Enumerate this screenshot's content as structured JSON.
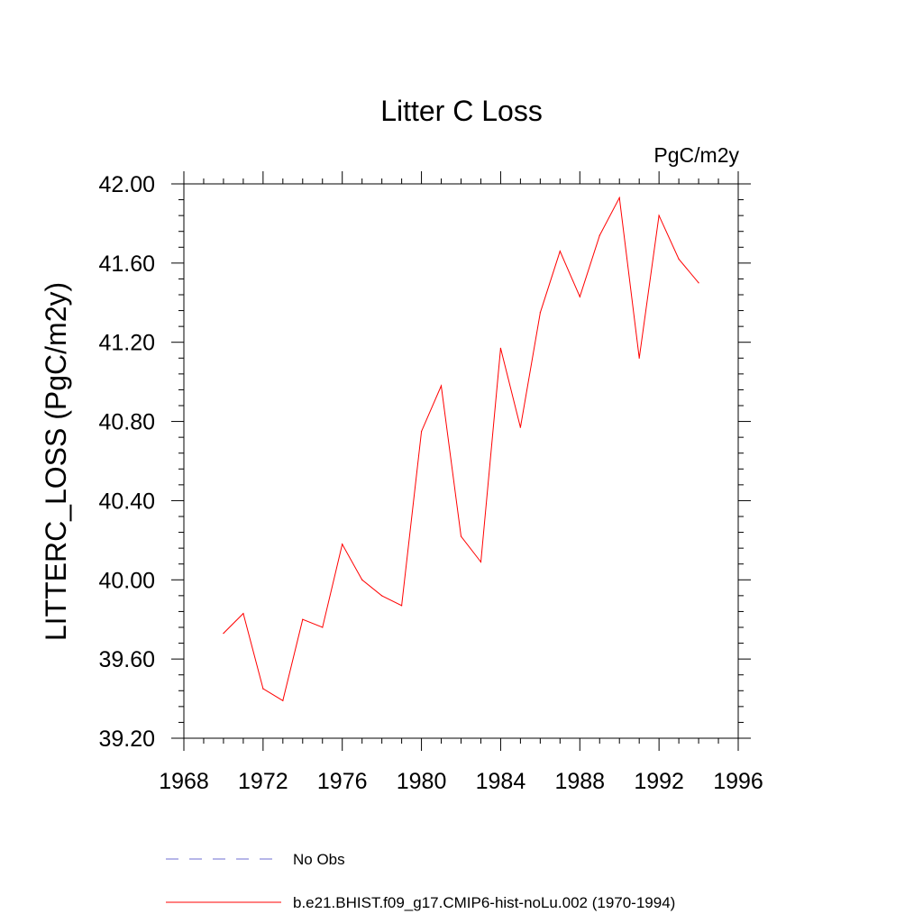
{
  "chart_data": {
    "type": "line",
    "title": "Litter C Loss",
    "units_label": "PgC/m2y",
    "ylabel": "LITTERC_LOSS  (PgC/m2y)",
    "xlabel": "",
    "xlim": [
      1968,
      1996
    ],
    "ylim": [
      39.2,
      42.0
    ],
    "x_ticks": [
      "1968",
      "1972",
      "1976",
      "1980",
      "1984",
      "1988",
      "1992",
      "1996"
    ],
    "y_ticks": [
      "39.20",
      "39.60",
      "40.00",
      "40.40",
      "40.80",
      "41.20",
      "41.60",
      "42.00"
    ],
    "grid": false,
    "series": [
      {
        "name": "b.e21.BHIST.f09_g17.CMIP6-hist-noLu.002 (1970-1994)",
        "color": "#ff0000",
        "x": [
          1970,
          1971,
          1972,
          1973,
          1974,
          1975,
          1976,
          1977,
          1978,
          1979,
          1980,
          1981,
          1982,
          1983,
          1984,
          1985,
          1986,
          1987,
          1988,
          1989,
          1990,
          1991,
          1992,
          1993,
          1994
        ],
        "y": [
          39.73,
          39.83,
          39.45,
          39.39,
          39.8,
          39.76,
          40.18,
          40.0,
          39.92,
          39.87,
          40.75,
          40.98,
          40.22,
          40.09,
          41.17,
          40.77,
          41.35,
          41.66,
          41.43,
          41.74,
          41.93,
          41.12,
          41.84,
          41.62,
          41.5
        ]
      }
    ],
    "legend": {
      "placement": "bottom-left",
      "entries": [
        {
          "label": "No Obs",
          "style": "dashed",
          "color": "#6c6cd0"
        },
        {
          "label": "b.e21.BHIST.f09_g17.CMIP6-hist-noLu.002 (1970-1994)",
          "style": "solid",
          "color": "#ff0000"
        }
      ]
    }
  }
}
